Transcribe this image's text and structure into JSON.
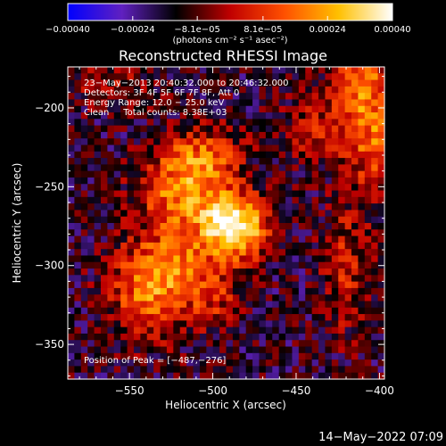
{
  "chart_data": {
    "type": "heatmap",
    "title": "Reconstructed RHESSI Image",
    "xlabel": "Heliocentric X (arcsec)",
    "ylabel": "Heliocentric Y (arcsec)",
    "xlim": [
      -587,
      -397
    ],
    "ylim": [
      -372,
      -174
    ],
    "xticks": [
      -550,
      -500,
      -450,
      -400
    ],
    "yticks": [
      -350,
      -300,
      -250,
      -200
    ],
    "xtick_labels": [
      "−550",
      "−500",
      "−450",
      "−400"
    ],
    "ytick_labels": [
      "−350",
      "−300",
      "−250",
      "−200"
    ],
    "colorbar": {
      "range": [
        -0.0004,
        0.0004
      ],
      "ticks": [
        -0.0004,
        -0.00024,
        -8.1e-05,
        8.1e-05,
        0.00024,
        0.0004
      ],
      "tick_labels": [
        "−0.00040",
        "−0.00024",
        "−8.1e−05",
        "8.1e−05",
        "0.00024",
        "0.00040"
      ],
      "unit_label": "(photons cm⁻² s⁻¹ asec⁻²)",
      "colormap": [
        "#0000ff",
        "#6020c0",
        "#000000",
        "#c00000",
        "#ff5000",
        "#ffc000",
        "#ffffff"
      ]
    },
    "info_lines": [
      "23−May−2013 20:40:32.000 to 20:46:32.000",
      "Detectors: 3F 4F 5F 6F 7F 8F, Att 0",
      "Energy Range: 12.0 − 25.0 keV",
      "Clean     Total counts: 8.38E+03"
    ],
    "peak_label": "Position of Peak = [−487,−276]",
    "peak": [
      -487,
      -276
    ],
    "hotspots": [
      {
        "x": -487,
        "y": -276,
        "amp": 1.0,
        "sx": 14,
        "sy": 14
      },
      {
        "x": -520,
        "y": -255,
        "amp": 0.55,
        "sx": 18,
        "sy": 18
      },
      {
        "x": -505,
        "y": -232,
        "amp": 0.45,
        "sx": 16,
        "sy": 14
      },
      {
        "x": -540,
        "y": -320,
        "amp": 0.45,
        "sx": 16,
        "sy": 20
      },
      {
        "x": -525,
        "y": -300,
        "amp": 0.4,
        "sx": 18,
        "sy": 16
      },
      {
        "x": -500,
        "y": -320,
        "amp": 0.3,
        "sx": 12,
        "sy": 14
      },
      {
        "x": -410,
        "y": -190,
        "amp": 0.55,
        "sx": 14,
        "sy": 22
      },
      {
        "x": -400,
        "y": -230,
        "amp": 0.4,
        "sx": 12,
        "sy": 20
      },
      {
        "x": -420,
        "y": -300,
        "amp": 0.3,
        "sx": 10,
        "sy": 30
      },
      {
        "x": -440,
        "y": -215,
        "amp": 0.25,
        "sx": 14,
        "sy": 14
      },
      {
        "x": -560,
        "y": -185,
        "amp": 0.18,
        "sx": 22,
        "sy": 10
      }
    ],
    "background_level": -0.35,
    "noise_level": 0.28
  },
  "footer": {
    "timestamp": "14−May−2022 07:09"
  }
}
